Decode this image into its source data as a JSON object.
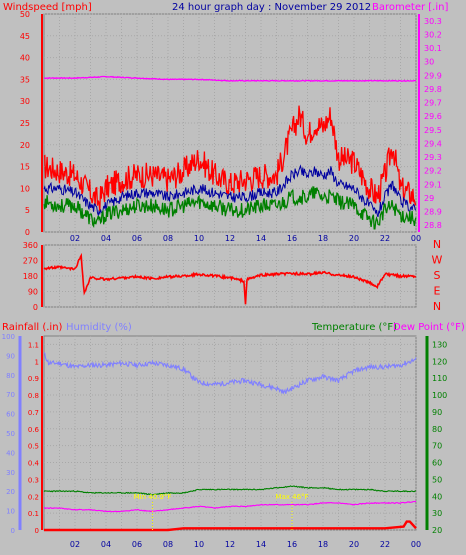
{
  "chart_data": [
    {
      "type": "line",
      "title": "24 hour graph day : November 29 2012",
      "left_axis_label": "Windspeed [mph]",
      "right_axis_label": "Barometer [.in]",
      "x_tick_labels": [
        "02",
        "04",
        "06",
        "08",
        "10",
        "12",
        "14",
        "16",
        "18",
        "20",
        "22",
        "00"
      ],
      "left_ticks": [
        "0",
        "5",
        "10",
        "15",
        "20",
        "25",
        "30",
        "35",
        "40",
        "45",
        "50"
      ],
      "right_ticks": [
        "28.8",
        "28.9",
        "29",
        "29.1",
        "29.2",
        "29.3",
        "29.4",
        "29.5",
        "29.6",
        "29.7",
        "29.8",
        "29.9",
        "30",
        "30.1",
        "30.2",
        "30.3"
      ],
      "left_ylim": [
        0,
        50
      ],
      "right_ylim": [
        28.75,
        30.35
      ],
      "colors": {
        "gust": "#ff0000",
        "average": "#0000a0",
        "speed": "#008000",
        "barometer": "#ff00ff"
      },
      "series": [
        {
          "key": "gust",
          "axis": "left",
          "x": [
            0,
            1,
            2,
            3,
            3.5,
            4,
            5,
            6,
            7,
            8,
            9,
            10,
            11,
            12,
            13,
            14,
            15,
            16,
            16.5,
            17,
            17.5,
            18,
            18.5,
            19,
            20,
            21,
            21.5,
            22,
            22.5,
            23,
            24
          ],
          "values": [
            15,
            14,
            13,
            9,
            7,
            10,
            12,
            13,
            13,
            12,
            14,
            17,
            13,
            11,
            12,
            13,
            13,
            23,
            27,
            22,
            25,
            24,
            27,
            17,
            16,
            10,
            8,
            13,
            20,
            10,
            8
          ]
        },
        {
          "key": "average",
          "axis": "left",
          "x": [
            0,
            1,
            2,
            3,
            3.5,
            4,
            5,
            6,
            7,
            8,
            9,
            10,
            11,
            12,
            13,
            14,
            15,
            16,
            16.5,
            17,
            17.5,
            18,
            18.5,
            19,
            20,
            21,
            21.5,
            22,
            22.5,
            23,
            24
          ],
          "values": [
            10,
            10,
            9,
            6,
            5,
            6,
            8,
            9,
            9,
            8,
            9,
            10,
            9,
            8,
            8,
            9,
            9,
            13,
            14,
            13,
            14,
            13,
            14,
            11,
            10,
            6,
            4,
            8,
            11,
            7,
            5
          ]
        },
        {
          "key": "speed",
          "axis": "left",
          "x": [
            0,
            1,
            2,
            3,
            3.5,
            4,
            5,
            6,
            7,
            8,
            9,
            10,
            11,
            12,
            13,
            14,
            15,
            16,
            16.5,
            17,
            17.5,
            18,
            18.5,
            19,
            20,
            21,
            21.5,
            22,
            22.5,
            23,
            24
          ],
          "values": [
            7,
            6,
            6,
            3,
            2,
            4,
            5,
            6,
            6,
            5,
            6,
            7,
            6,
            5,
            5,
            6,
            6,
            8,
            8,
            8,
            9,
            8,
            8,
            7,
            6,
            3,
            2,
            5,
            6,
            4,
            3
          ]
        },
        {
          "key": "barometer",
          "axis": "right",
          "x": [
            0,
            2,
            4,
            6,
            8,
            10,
            12,
            14,
            16,
            18,
            20,
            22,
            24
          ],
          "values": [
            29.88,
            29.88,
            29.89,
            29.88,
            29.87,
            29.87,
            29.86,
            29.86,
            29.86,
            29.86,
            29.86,
            29.86,
            29.86
          ]
        }
      ]
    },
    {
      "type": "line",
      "left_ticks": [
        "0",
        "90",
        "180",
        "270",
        "360"
      ],
      "right_ticks": [
        "N",
        "W",
        "S",
        "E",
        "N"
      ],
      "ylim": [
        0,
        360
      ],
      "colors": {
        "direction": "#ff0000"
      },
      "series": [
        {
          "key": "direction",
          "x": [
            0,
            1,
            2,
            2.4,
            2.5,
            2.6,
            3,
            4,
            5,
            6,
            7,
            8,
            9,
            10,
            11,
            12,
            12.9,
            13,
            13.1,
            14,
            15,
            16,
            17,
            18,
            19,
            20,
            21,
            21.5,
            22,
            23,
            24
          ],
          "values": [
            225,
            230,
            220,
            300,
            180,
            80,
            170,
            160,
            170,
            175,
            165,
            175,
            180,
            190,
            180,
            170,
            150,
            20,
            160,
            185,
            190,
            195,
            190,
            200,
            185,
            175,
            140,
            120,
            190,
            180,
            180
          ]
        }
      ]
    },
    {
      "type": "line",
      "rainfall_label": "Rainfall (.in)",
      "humidity_label": "Humidity (%)",
      "temperature_label": "Temperature (°F)",
      "dewpoint_label": "Dew Point (°F)",
      "rain_ticks": [
        "0",
        "0.1",
        "0.2",
        "0.3",
        "0.4",
        "0.5",
        "0.6",
        "0.7",
        "0.8",
        "0.9",
        "1",
        "1.1"
      ],
      "humidity_ticks": [
        "0",
        "10",
        "20",
        "30",
        "40",
        "50",
        "60",
        "70",
        "80",
        "90",
        "100"
      ],
      "temp_ticks": [
        "20",
        "30",
        "40",
        "50",
        "60",
        "70",
        "80",
        "90",
        "100",
        "110",
        "120",
        "130"
      ],
      "rain_ylim": [
        0,
        1.15
      ],
      "humidity_ylim": [
        0,
        100
      ],
      "temp_ylim": [
        20,
        135
      ],
      "x_tick_labels": [
        "02",
        "04",
        "06",
        "08",
        "10",
        "12",
        "14",
        "16",
        "18",
        "20",
        "22",
        "00"
      ],
      "annotations": [
        {
          "text": "Min 40.9°F",
          "x": 7
        },
        {
          "text": "Max 46°F",
          "x": 16
        }
      ],
      "colors": {
        "rainfall": "#ff0000",
        "humidity": "#8080ff",
        "temperature": "#008000",
        "dewpoint": "#ff00ff"
      },
      "series": [
        {
          "key": "humidity",
          "axis": "humidity",
          "x": [
            0,
            0.3,
            1,
            2,
            3,
            4,
            5,
            6,
            7,
            8,
            9,
            10,
            11,
            12,
            13,
            14,
            15,
            15.5,
            16,
            17,
            18,
            19,
            20,
            21,
            22,
            23,
            24
          ],
          "values": [
            91,
            86,
            86,
            84,
            85,
            85,
            86,
            85,
            86,
            85,
            83,
            76,
            75,
            76,
            77,
            75,
            73,
            71,
            73,
            77,
            79,
            77,
            82,
            84,
            84,
            85,
            88
          ]
        },
        {
          "key": "temperature",
          "axis": "temp",
          "x": [
            0,
            1,
            2,
            3,
            4,
            5,
            6,
            7,
            8,
            9,
            10,
            11,
            12,
            13,
            14,
            15,
            16,
            17,
            18,
            19,
            20,
            21,
            22,
            23,
            24
          ],
          "values": [
            43,
            43,
            43,
            42,
            42,
            42,
            42,
            41,
            42,
            42,
            44,
            44,
            44,
            44,
            44,
            45,
            46,
            45,
            45,
            44,
            44,
            44,
            43,
            43,
            43
          ]
        },
        {
          "key": "dewpoint",
          "axis": "temp",
          "x": [
            0,
            1,
            2,
            3,
            4,
            5,
            6,
            7,
            8,
            9,
            10,
            11,
            12,
            13,
            14,
            15,
            16,
            17,
            18,
            19,
            20,
            21,
            22,
            23,
            24
          ],
          "values": [
            33,
            33,
            32,
            32,
            31,
            31,
            32,
            31,
            32,
            33,
            34,
            33,
            34,
            34,
            35,
            35,
            35,
            35,
            36,
            36,
            35,
            36,
            36,
            36,
            37
          ]
        },
        {
          "key": "rainfall",
          "axis": "rain",
          "x": [
            0,
            5,
            6,
            7,
            8,
            9,
            10,
            12,
            14,
            16,
            18,
            20,
            22,
            23.2,
            23.4,
            23.6,
            24
          ],
          "values": [
            0,
            0,
            0,
            0,
            0,
            0.01,
            0.01,
            0.01,
            0.01,
            0.01,
            0.01,
            0.01,
            0.01,
            0.02,
            0.05,
            0.05,
            0.01
          ]
        }
      ]
    }
  ]
}
